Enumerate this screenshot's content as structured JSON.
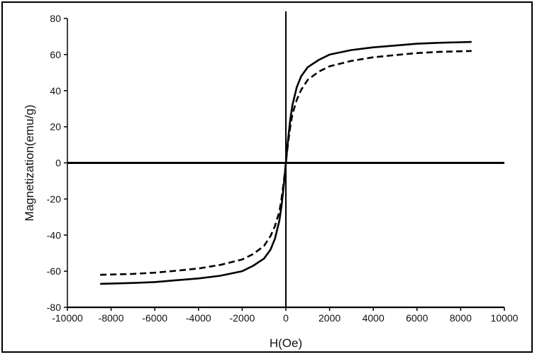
{
  "chart_data": {
    "type": "line",
    "title": "",
    "xlabel": "H(Oe)",
    "ylabel": "Magnetization(emu/g)",
    "xlim": [
      -10000,
      10000
    ],
    "ylim": [
      -80,
      80
    ],
    "xticks": [
      -10000,
      -8000,
      -6000,
      -4000,
      -2000,
      0,
      2000,
      4000,
      6000,
      8000,
      10000
    ],
    "yticks": [
      -80,
      -60,
      -40,
      -20,
      0,
      20,
      40,
      60,
      80
    ],
    "grid": false,
    "legend": "none",
    "series": [
      {
        "style": "solid",
        "color": "#000000",
        "x": [
          -8500,
          -7000,
          -6000,
          -5000,
          -4000,
          -3000,
          -2000,
          -1500,
          -1000,
          -700,
          -500,
          -300,
          -200,
          -100,
          0,
          100,
          200,
          300,
          500,
          700,
          1000,
          1500,
          2000,
          3000,
          4000,
          5000,
          6000,
          7000,
          8500
        ],
        "y": [
          -67,
          -66.5,
          -66,
          -65,
          -64,
          -62.5,
          -60,
          -57,
          -53,
          -48,
          -42,
          -32,
          -24,
          -13,
          0,
          13,
          24,
          32,
          42,
          48,
          53,
          57,
          60,
          62.5,
          64,
          65,
          66,
          66.5,
          67
        ]
      },
      {
        "style": "dashed",
        "color": "#000000",
        "x": [
          -8500,
          -7000,
          -6000,
          -5000,
          -4000,
          -3000,
          -2000,
          -1500,
          -1000,
          -700,
          -500,
          -300,
          -200,
          -100,
          0,
          100,
          200,
          300,
          500,
          700,
          1000,
          1500,
          2000,
          3000,
          4000,
          5000,
          6000,
          7000,
          8500
        ],
        "y": [
          -62,
          -61.5,
          -60.8,
          -59.7,
          -58.5,
          -56.5,
          -53.5,
          -50.5,
          -46,
          -40.5,
          -35,
          -27,
          -20,
          -11,
          0,
          11,
          20,
          27,
          35,
          40.5,
          46,
          50.5,
          53.5,
          56.5,
          58.5,
          59.7,
          60.8,
          61.5,
          62
        ]
      }
    ]
  }
}
